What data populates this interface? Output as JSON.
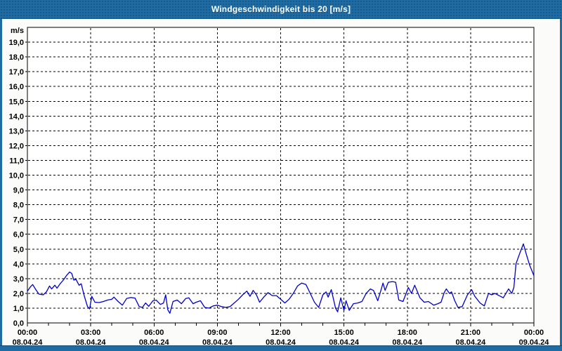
{
  "colors": {
    "frame_blue": "#1E6CA3",
    "frame_blue_dark": "#0E4A73",
    "line": "#0000CC",
    "grid": "#000000",
    "plot_bg": "#FFFFFF",
    "page_bg": "#FBFCF9",
    "title_text": "#FFFFFF"
  },
  "chart_data": {
    "type": "line",
    "title": "Windgeschwindigkeit bis 20 [m/s]",
    "ylabel_unit": "m/s",
    "xlabel": "",
    "ylim": [
      0,
      20
    ],
    "y_tick_step": 1,
    "y_tick_labels": [
      "0,0",
      "1,0",
      "2,0",
      "3,0",
      "4,0",
      "5,0",
      "6,0",
      "7,0",
      "8,0",
      "9,0",
      "10,0",
      "11,0",
      "12,0",
      "13,0",
      "14,0",
      "15,0",
      "16,0",
      "17,0",
      "18,0",
      "19,0"
    ],
    "xlim_hours": [
      0,
      24
    ],
    "x_minor_tick_hours": 1,
    "grid": "dashed",
    "legend": "none",
    "x_ticks": [
      {
        "hour": 0,
        "time": "00:00",
        "date": "08.04.24"
      },
      {
        "hour": 3,
        "time": "03:00",
        "date": "08.04.24"
      },
      {
        "hour": 6,
        "time": "06:00",
        "date": "08.04.24"
      },
      {
        "hour": 9,
        "time": "09:00",
        "date": "08.04.24"
      },
      {
        "hour": 12,
        "time": "12:00",
        "date": "08.04.24"
      },
      {
        "hour": 15,
        "time": "15:00",
        "date": "08.04.24"
      },
      {
        "hour": 18,
        "time": "18:00",
        "date": "08.04.24"
      },
      {
        "hour": 21,
        "time": "21:00",
        "date": "08.04.24"
      },
      {
        "hour": 24,
        "time": "00:00",
        "date": "09.04.24"
      }
    ],
    "series": [
      {
        "name": "Windgeschwindigkeit",
        "points": [
          [
            0.0,
            2.15
          ],
          [
            0.15,
            2.45
          ],
          [
            0.25,
            2.6
          ],
          [
            0.4,
            2.25
          ],
          [
            0.55,
            1.95
          ],
          [
            0.75,
            1.9
          ],
          [
            0.9,
            2.1
          ],
          [
            1.05,
            2.5
          ],
          [
            1.15,
            2.3
          ],
          [
            1.3,
            2.55
          ],
          [
            1.4,
            2.35
          ],
          [
            1.55,
            2.65
          ],
          [
            1.7,
            2.9
          ],
          [
            1.85,
            3.2
          ],
          [
            2.0,
            3.45
          ],
          [
            2.1,
            3.35
          ],
          [
            2.2,
            2.9
          ],
          [
            2.3,
            2.95
          ],
          [
            2.45,
            2.55
          ],
          [
            2.55,
            2.65
          ],
          [
            2.7,
            1.8
          ],
          [
            2.85,
            1.1
          ],
          [
            2.95,
            0.95
          ],
          [
            3.05,
            1.8
          ],
          [
            3.2,
            1.4
          ],
          [
            3.4,
            1.38
          ],
          [
            3.6,
            1.45
          ],
          [
            3.8,
            1.55
          ],
          [
            4.0,
            1.6
          ],
          [
            4.1,
            1.75
          ],
          [
            4.3,
            1.45
          ],
          [
            4.5,
            1.2
          ],
          [
            4.7,
            1.65
          ],
          [
            4.9,
            1.72
          ],
          [
            5.1,
            1.68
          ],
          [
            5.3,
            1.1
          ],
          [
            5.45,
            1.05
          ],
          [
            5.6,
            1.35
          ],
          [
            5.75,
            1.12
          ],
          [
            5.95,
            1.5
          ],
          [
            6.1,
            1.55
          ],
          [
            6.3,
            1.25
          ],
          [
            6.45,
            1.35
          ],
          [
            6.55,
            1.9
          ],
          [
            6.65,
            0.9
          ],
          [
            6.75,
            0.65
          ],
          [
            6.9,
            1.45
          ],
          [
            7.1,
            1.55
          ],
          [
            7.3,
            1.3
          ],
          [
            7.5,
            1.65
          ],
          [
            7.65,
            1.7
          ],
          [
            7.85,
            1.3
          ],
          [
            8.0,
            1.4
          ],
          [
            8.2,
            1.5
          ],
          [
            8.4,
            1.05
          ],
          [
            8.6,
            1.0
          ],
          [
            8.8,
            1.15
          ],
          [
            9.0,
            1.2
          ],
          [
            9.2,
            1.1
          ],
          [
            9.4,
            1.05
          ],
          [
            9.6,
            1.1
          ],
          [
            9.8,
            1.35
          ],
          [
            10.0,
            1.6
          ],
          [
            10.2,
            1.9
          ],
          [
            10.4,
            2.15
          ],
          [
            10.55,
            1.8
          ],
          [
            10.7,
            2.2
          ],
          [
            10.85,
            1.9
          ],
          [
            11.0,
            1.4
          ],
          [
            11.2,
            1.75
          ],
          [
            11.4,
            2.05
          ],
          [
            11.6,
            1.85
          ],
          [
            11.8,
            1.85
          ],
          [
            12.0,
            1.6
          ],
          [
            12.2,
            1.35
          ],
          [
            12.4,
            1.6
          ],
          [
            12.6,
            2.0
          ],
          [
            12.8,
            2.5
          ],
          [
            13.0,
            2.7
          ],
          [
            13.2,
            2.6
          ],
          [
            13.4,
            2.0
          ],
          [
            13.6,
            1.4
          ],
          [
            13.8,
            1.05
          ],
          [
            14.0,
            1.9
          ],
          [
            14.15,
            2.1
          ],
          [
            14.25,
            1.75
          ],
          [
            14.4,
            2.25
          ],
          [
            14.6,
            1.0
          ],
          [
            14.7,
            0.75
          ],
          [
            14.85,
            1.7
          ],
          [
            15.0,
            0.85
          ],
          [
            15.1,
            1.5
          ],
          [
            15.25,
            0.85
          ],
          [
            15.45,
            1.3
          ],
          [
            15.65,
            1.35
          ],
          [
            15.85,
            1.45
          ],
          [
            16.05,
            2.0
          ],
          [
            16.25,
            2.3
          ],
          [
            16.4,
            2.2
          ],
          [
            16.6,
            1.5
          ],
          [
            16.75,
            2.2
          ],
          [
            16.85,
            2.7
          ],
          [
            16.95,
            2.2
          ],
          [
            17.1,
            2.75
          ],
          [
            17.3,
            2.8
          ],
          [
            17.45,
            2.75
          ],
          [
            17.6,
            1.55
          ],
          [
            17.8,
            1.45
          ],
          [
            18.05,
            2.4
          ],
          [
            18.2,
            2.0
          ],
          [
            18.35,
            2.55
          ],
          [
            18.6,
            1.7
          ],
          [
            18.8,
            1.4
          ],
          [
            19.0,
            1.45
          ],
          [
            19.25,
            1.2
          ],
          [
            19.45,
            1.3
          ],
          [
            19.6,
            1.4
          ],
          [
            19.75,
            2.05
          ],
          [
            19.85,
            2.3
          ],
          [
            20.0,
            2.0
          ],
          [
            20.1,
            2.1
          ],
          [
            20.25,
            1.5
          ],
          [
            20.4,
            1.05
          ],
          [
            20.6,
            1.1
          ],
          [
            20.85,
            1.9
          ],
          [
            21.05,
            2.25
          ],
          [
            21.2,
            1.8
          ],
          [
            21.45,
            1.35
          ],
          [
            21.65,
            1.15
          ],
          [
            21.85,
            2.0
          ],
          [
            22.0,
            1.9
          ],
          [
            22.15,
            2.0
          ],
          [
            22.35,
            1.85
          ],
          [
            22.55,
            1.7
          ],
          [
            22.8,
            2.3
          ],
          [
            22.95,
            2.0
          ],
          [
            23.05,
            2.4
          ],
          [
            23.15,
            4.0
          ],
          [
            23.3,
            4.6
          ],
          [
            23.5,
            5.35
          ],
          [
            23.65,
            4.6
          ],
          [
            23.8,
            3.9
          ],
          [
            24.0,
            3.2
          ]
        ]
      }
    ]
  }
}
